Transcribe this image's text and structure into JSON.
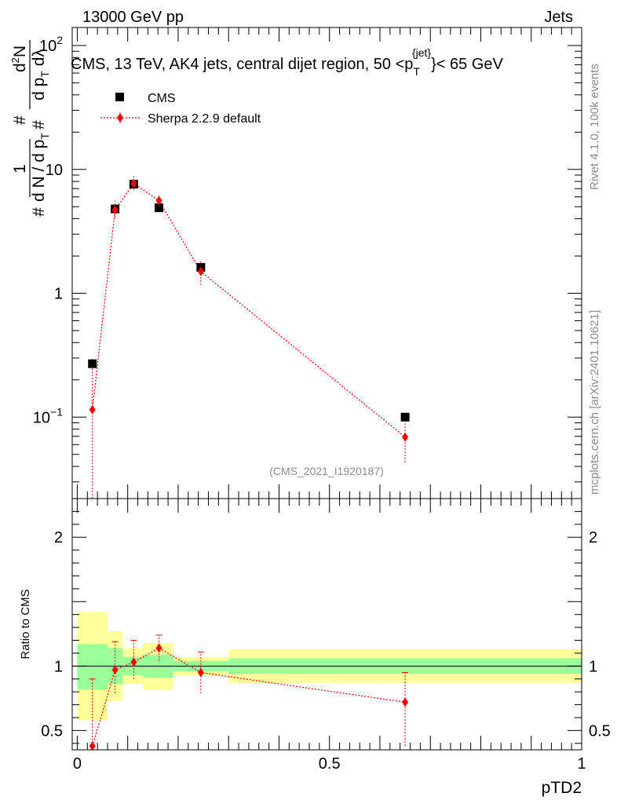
{
  "header": {
    "energy_label": "13000 GeV pp",
    "process_label": "Jets"
  },
  "side_labels": {
    "rivet_version": "Rivet 4.1.0,  100k events",
    "source": "mcplots.cern.ch [arXiv:2401.10621]"
  },
  "chart_data": [
    {
      "type": "scatter",
      "panel": "main",
      "title": "CMS, 13 TeV, AK4 jets, central dijet region, 50 <p",
      "title_sub": "T",
      "title_sup": "{jet}",
      "title_end": "}< 65 GeV",
      "analysis_id": "(CMS_2021_I1920187)",
      "ylabel": "1/dN/dpT · d²N/dpT dλ",
      "yscale": "log",
      "xlim": [
        -0.01,
        1.0
      ],
      "ylim": [
        0.022,
        140
      ],
      "y_ticks": [
        {
          "value": 0.1,
          "mantissa": "10",
          "exponent": "−1"
        },
        {
          "value": 1,
          "label": "1"
        },
        {
          "value": 10,
          "label": "10"
        },
        {
          "value": 100,
          "mantissa": "10",
          "exponent": "2"
        }
      ],
      "legend": [
        {
          "name": "CMS",
          "marker": "square",
          "color": "#000000"
        },
        {
          "name": "Sherpa 2.2.9 default",
          "marker": "diamond",
          "color": "#ff0000"
        }
      ],
      "series": [
        {
          "name": "CMS",
          "x": [
            0.03,
            0.075,
            0.112,
            0.162,
            0.245,
            0.65
          ],
          "y": [
            0.27,
            4.8,
            7.6,
            4.9,
            1.62,
            0.1
          ]
        },
        {
          "name": "Sherpa 2.2.9 default",
          "x": [
            0.03,
            0.075,
            0.112,
            0.162,
            0.245,
            0.65
          ],
          "y": [
            0.115,
            4.7,
            7.7,
            5.6,
            1.5,
            0.069
          ],
          "yerr_low": [
            0.115,
            0.6,
            0.9,
            0.6,
            0.33,
            0.026
          ],
          "yerr_high": [
            0.18,
            0.9,
            1.3,
            0.7,
            0.33,
            0.034
          ]
        }
      ]
    },
    {
      "type": "scatter",
      "panel": "ratio",
      "xlabel": "pTD2",
      "ylabel": "Ratio to CMS",
      "xlim": [
        -0.01,
        1.0
      ],
      "ylim": [
        0.35,
        2.3
      ],
      "x_ticks": [
        0,
        0.5,
        1
      ],
      "y_ticks": [
        0.5,
        1,
        2
      ],
      "reference_line": 1,
      "uncertainty_bands": [
        {
          "x_range": [
            0.0,
            0.06
          ],
          "inner": [
            0.82,
            1.17
          ],
          "outer": [
            0.58,
            1.42
          ]
        },
        {
          "x_range": [
            0.06,
            0.09
          ],
          "inner": [
            0.86,
            1.14
          ],
          "outer": [
            0.73,
            1.27
          ]
        },
        {
          "x_range": [
            0.09,
            0.13
          ],
          "inner": [
            0.93,
            1.07
          ],
          "outer": [
            0.86,
            1.14
          ]
        },
        {
          "x_range": [
            0.13,
            0.19
          ],
          "inner": [
            0.91,
            1.09
          ],
          "outer": [
            0.82,
            1.18
          ]
        },
        {
          "x_range": [
            0.19,
            0.3
          ],
          "inner": [
            0.96,
            1.04
          ],
          "outer": [
            0.93,
            1.07
          ]
        },
        {
          "x_range": [
            0.3,
            1.0
          ],
          "inner": [
            0.94,
            1.06
          ],
          "outer": [
            0.87,
            1.13
          ]
        }
      ],
      "series": [
        {
          "name": "Sherpa 2.2.9 default",
          "x": [
            0.03,
            0.075,
            0.112,
            0.162,
            0.245,
            0.65
          ],
          "y": [
            0.38,
            0.97,
            1.03,
            1.14,
            0.95,
            0.72
          ],
          "yerr_low": [
            0.38,
            0.18,
            0.13,
            0.1,
            0.16,
            0.34
          ],
          "yerr_high": [
            0.52,
            0.22,
            0.17,
            0.1,
            0.16,
            0.23
          ]
        }
      ]
    }
  ]
}
